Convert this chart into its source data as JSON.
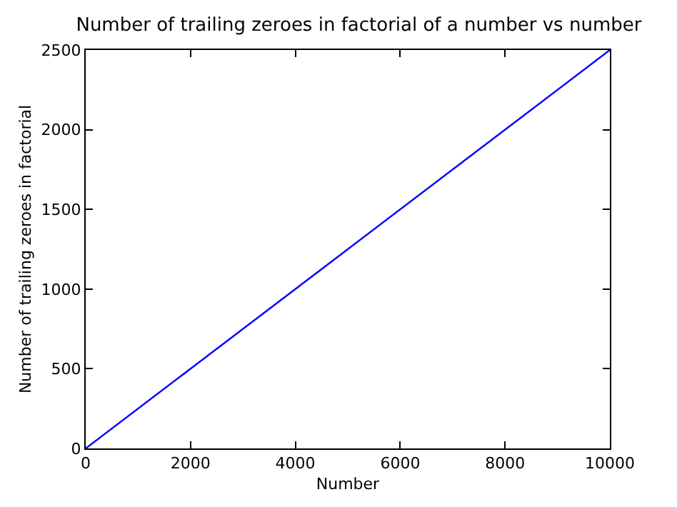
{
  "chart_data": {
    "type": "line",
    "title": "Number of trailing zeroes in factorial of a number vs number",
    "xlabel": "Number",
    "ylabel": "Number of trailing zeroes in factorial",
    "x": [
      0,
      2500,
      5000,
      7500,
      10000
    ],
    "series": [
      {
        "color": "#0000ff",
        "values": [
          0,
          625,
          1250,
          1875,
          2500
        ]
      }
    ],
    "xlim": [
      0,
      10000
    ],
    "xticks": [
      0,
      2000,
      4000,
      6000,
      8000,
      10000
    ],
    "ylim": [
      0,
      2500
    ],
    "yticks": [
      0,
      500,
      1000,
      1500,
      2000,
      2500
    ],
    "grid": false,
    "marker": "none",
    "line_style": "solid"
  }
}
